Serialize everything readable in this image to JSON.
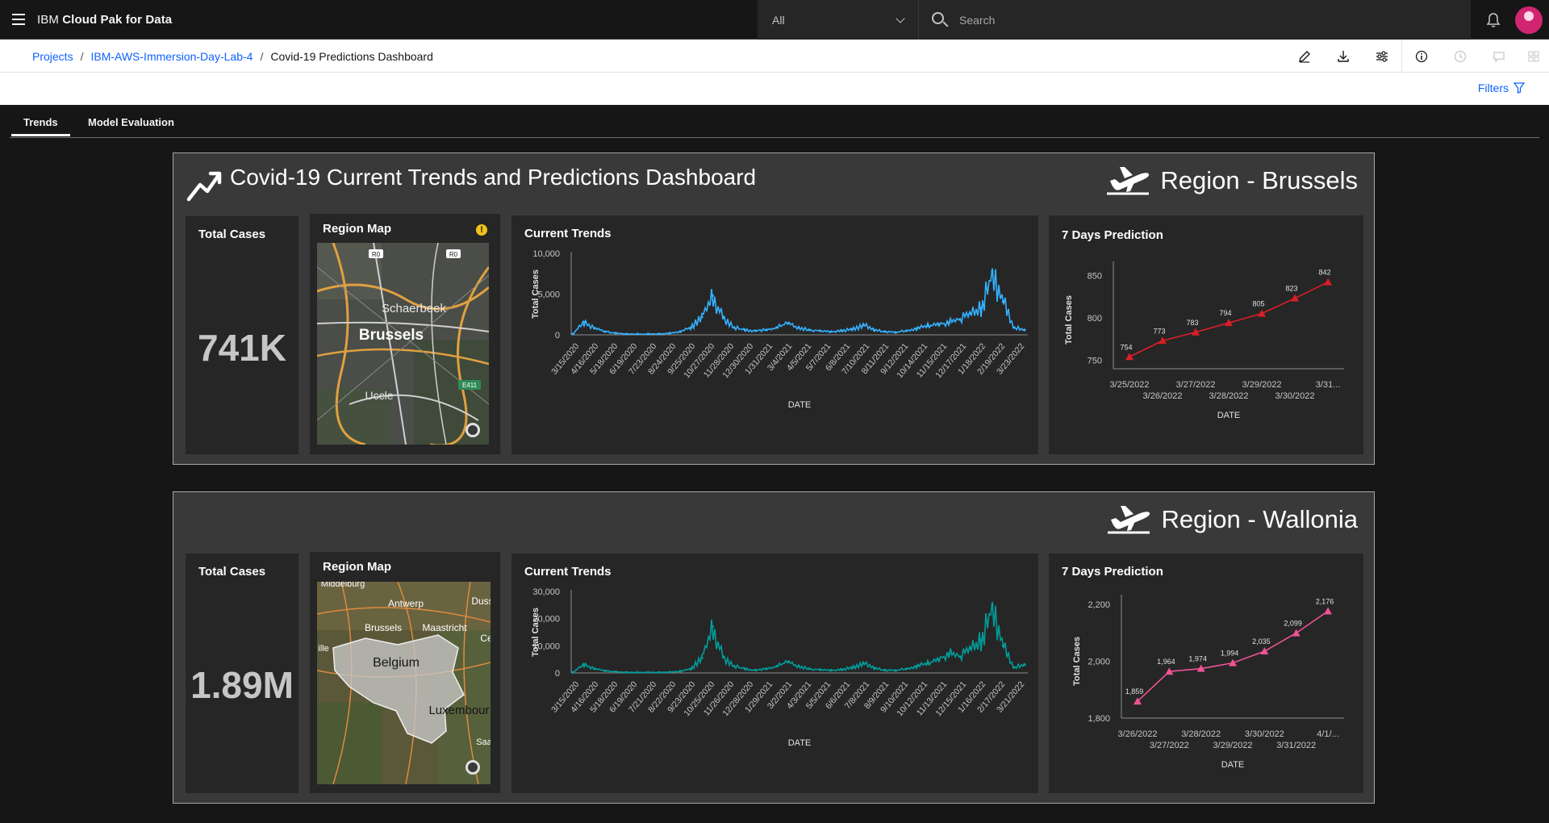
{
  "header": {
    "product_prefix": "IBM",
    "product_name": "Cloud Pak for Data",
    "scope": "All",
    "search_placeholder": "Search"
  },
  "breadcrumb": {
    "items": [
      "Projects",
      "IBM-AWS-Immersion-Day-Lab-4",
      "Covid-19 Predictions Dashboard"
    ],
    "separator": "/"
  },
  "filters_label": "Filters",
  "tabs": [
    {
      "label": "Trends",
      "active": true
    },
    {
      "label": "Model Evaluation",
      "active": false
    }
  ],
  "dashboard": {
    "title": "Covid-19 Current Trends and Predictions Dashboard",
    "labels": {
      "total_cases": "Total Cases",
      "region_map": "Region Map",
      "current_trends": "Current Trends",
      "prediction": "7 Days Prediction"
    }
  },
  "regions": [
    {
      "name": "Region - Brussels",
      "total_cases": "741K",
      "map_labels": [
        "Schaerbeek",
        "Brussels",
        "Uccle",
        "R0",
        "R0",
        "E411"
      ],
      "accent": "#33b1ff"
    },
    {
      "name": "Region - Wallonia",
      "total_cases": "1.89M",
      "map_labels": [
        "Middelburg",
        "Antwerp",
        "Duss",
        "Brussels",
        "Maastricht",
        "Belgium",
        "Luxembour",
        "Ce",
        "ille",
        "Saa"
      ],
      "accent": "#009d9a"
    }
  ],
  "chart_data": [
    {
      "type": "line",
      "title": "Current Trends",
      "region": "Brussels",
      "xlabel": "DATE",
      "ylabel": "Total Cases",
      "ylim": [
        0,
        10000
      ],
      "yticks": [
        "0",
        "5,000",
        "10,000"
      ],
      "x_tick_labels": [
        "3/15/2020",
        "4/16/2020",
        "5/18/2020",
        "6/19/2020",
        "7/23/2020",
        "8/24/2020",
        "9/25/2020",
        "10/27/2020",
        "11/28/2020",
        "12/30/2020",
        "1/31/2021",
        "3/4/2021",
        "4/5/2021",
        "5/7/2021",
        "6/8/2021",
        "7/10/2021",
        "8/11/2021",
        "9/12/2021",
        "10/14/2021",
        "11/15/2021",
        "12/17/2021",
        "1/18/2022",
        "2/19/2022",
        "3/23/2022"
      ],
      "color": "#33b1ff",
      "values": [
        100,
        1600,
        800,
        400,
        200,
        100,
        100,
        100,
        100,
        200,
        400,
        900,
        2200,
        4800,
        2200,
        900,
        600,
        500,
        600,
        900,
        1400,
        900,
        600,
        500,
        400,
        500,
        700,
        1200,
        600,
        400,
        300,
        500,
        800,
        1100,
        1300,
        1500,
        1900,
        2600,
        3300,
        7800,
        4100,
        900,
        600
      ]
    },
    {
      "type": "line",
      "title": "7 Days Prediction",
      "region": "Brussels",
      "xlabel": "DATE",
      "ylabel": "Total Cases",
      "yticks": [
        "750",
        "800",
        "850"
      ],
      "ylim": [
        740,
        855
      ],
      "categories": [
        "3/25/2022",
        "3/26/2022",
        "3/27/2022",
        "3/28/2022",
        "3/29/2022",
        "3/30/2022",
        "3/31..."
      ],
      "values": [
        754,
        773,
        783,
        794,
        805,
        823,
        842
      ],
      "data_labels": [
        "754",
        "773",
        "783",
        "794",
        "805",
        "823",
        "842"
      ],
      "color": "#da1e28"
    },
    {
      "type": "line",
      "title": "Current Trends",
      "region": "Wallonia",
      "xlabel": "DATE",
      "ylabel": "Total Cases",
      "ylim": [
        0,
        30000
      ],
      "yticks": [
        "0",
        "10,000",
        "20,000",
        "30,000"
      ],
      "x_tick_labels": [
        "3/15/2020",
        "4/16/2020",
        "5/18/2020",
        "6/19/2020",
        "7/21/2020",
        "8/22/2020",
        "9/23/2020",
        "10/25/2020",
        "11/26/2020",
        "12/28/2020",
        "1/29/2021",
        "3/2/2021",
        "4/3/2021",
        "5/5/2021",
        "6/6/2021",
        "7/8/2021",
        "8/9/2021",
        "9/10/2021",
        "10/12/2021",
        "11/13/2021",
        "12/15/2021",
        "1/16/2022",
        "2/17/2022",
        "3/21/2022"
      ],
      "color": "#009d9a",
      "values": [
        200,
        3200,
        1500,
        800,
        400,
        200,
        200,
        200,
        200,
        300,
        600,
        1500,
        5500,
        17000,
        6000,
        2500,
        1500,
        1000,
        1500,
        2500,
        4000,
        2500,
        1500,
        1200,
        1000,
        1200,
        2000,
        3500,
        1800,
        1000,
        900,
        1500,
        2500,
        3500,
        5000,
        7000,
        6000,
        9000,
        12000,
        25000,
        10000,
        2000,
        3000
      ]
    },
    {
      "type": "line",
      "title": "7 Days Prediction",
      "region": "Wallonia",
      "xlabel": "DATE",
      "ylabel": "Total Cases",
      "yticks": [
        "1,800",
        "2,000",
        "2,200"
      ],
      "ylim": [
        1800,
        2200
      ],
      "categories": [
        "3/26/2022",
        "3/27/2022",
        "3/28/2022",
        "3/29/2022",
        "3/30/2022",
        "3/31/2022",
        "4/1/..."
      ],
      "values": [
        1859,
        1964,
        1974,
        1994,
        2035,
        2099,
        2176
      ],
      "data_labels": [
        "1,859",
        "1,964",
        "1,974",
        "1,994",
        "2,035",
        "2,099",
        "2,176"
      ],
      "color": "#ee5396"
    }
  ]
}
